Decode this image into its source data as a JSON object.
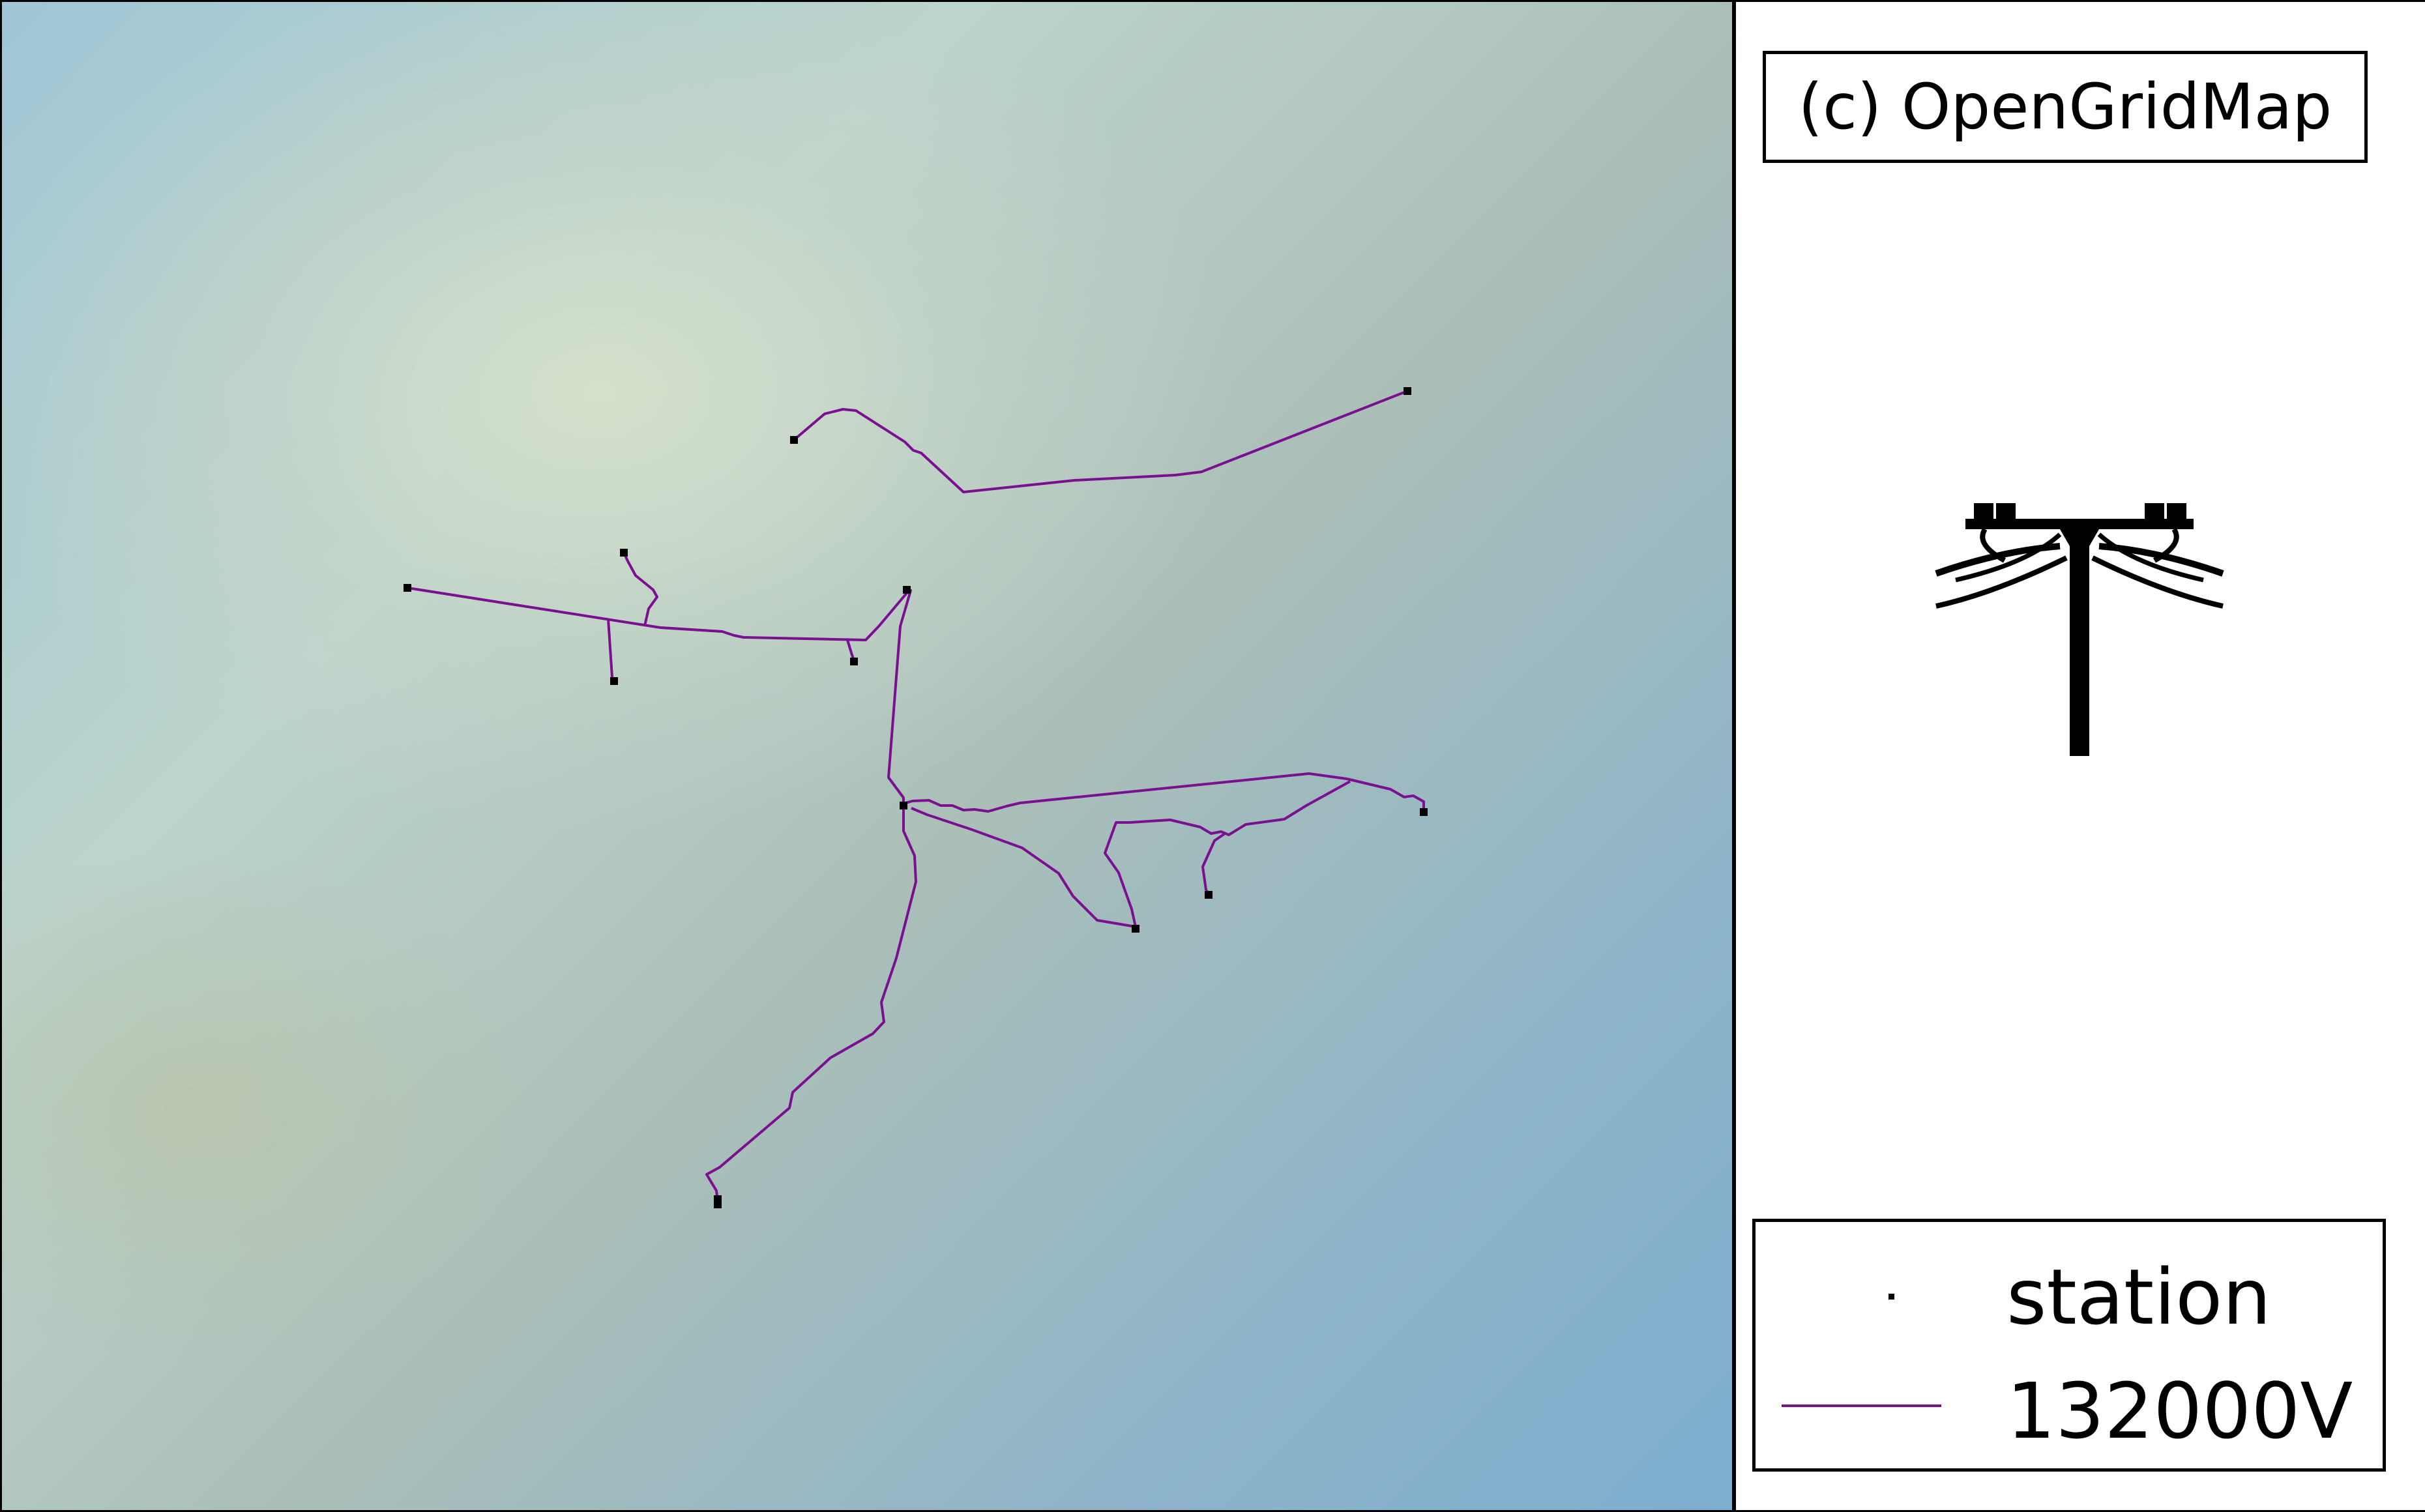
{
  "map": {
    "line_color": "#7a0f8f",
    "station_color": "#000000",
    "lines": [
      [
        [
          1215,
          672
        ],
        [
          1262,
          632
        ],
        [
          1290,
          625
        ],
        [
          1310,
          627
        ],
        [
          1385,
          675
        ],
        [
          1398,
          688
        ],
        [
          1410,
          692
        ],
        [
          1475,
          752
        ],
        [
          1645,
          734
        ],
        [
          1800,
          726
        ],
        [
          1840,
          721
        ],
        [
          2156,
          597
        ]
      ],
      [
        [
          622,
          899
        ],
        [
          1010,
          960
        ],
        [
          1105,
          966
        ],
        [
          1123,
          972
        ],
        [
          1138,
          975
        ],
        [
          1325,
          979
        ],
        [
          1345,
          958
        ],
        [
          1388,
          907
        ]
      ],
      [
        [
          1297,
          979
        ],
        [
          1304,
          1002
        ],
        [
          1307,
          1010
        ]
      ],
      [
        [
          930,
          947
        ],
        [
          936,
          1036
        ],
        [
          939,
          1042
        ]
      ],
      [
        [
          986,
          957
        ],
        [
          992,
          931
        ],
        [
          1005,
          913
        ],
        [
          999,
          902
        ],
        [
          972,
          880
        ],
        [
          960,
          858
        ],
        [
          954,
          845
        ]
      ],
      [
        [
          1388,
          907
        ],
        [
          1394,
          903
        ],
        [
          1378,
          958
        ],
        [
          1360,
          1190
        ],
        [
          1383,
          1221
        ],
        [
          1383,
          1272
        ],
        [
          1400,
          1310
        ],
        [
          1402,
          1350
        ],
        [
          1372,
          1467
        ],
        [
          1349,
          1535
        ],
        [
          1353,
          1565
        ],
        [
          1336,
          1583
        ],
        [
          1271,
          1620
        ],
        [
          1213,
          1673
        ],
        [
          1208,
          1697
        ],
        [
          1101,
          1788
        ],
        [
          1081,
          1799
        ],
        [
          1096,
          1824
        ],
        [
          1098,
          1840
        ]
      ],
      [
        [
          1383,
          1230
        ],
        [
          1397,
          1226
        ],
        [
          1422,
          1225
        ],
        [
          1440,
          1233
        ],
        [
          1458,
          1233
        ],
        [
          1475,
          1240
        ],
        [
          1492,
          1239
        ],
        [
          1513,
          1242
        ],
        [
          1541,
          1234
        ],
        [
          1562,
          1229
        ],
        [
          2005,
          1184
        ],
        [
          2063,
          1192
        ],
        [
          2130,
          1208
        ],
        [
          2151,
          1220
        ],
        [
          2165,
          1218
        ],
        [
          2181,
          1227
        ],
        [
          2181,
          1243
        ]
      ],
      [
        [
          1395,
          1237
        ],
        [
          1419,
          1247
        ],
        [
          1488,
          1270
        ],
        [
          1565,
          1298
        ],
        [
          1621,
          1337
        ],
        [
          1643,
          1372
        ],
        [
          1680,
          1409
        ],
        [
          1739,
          1419
        ],
        [
          1733,
          1392
        ],
        [
          1713,
          1336
        ],
        [
          1692,
          1306
        ],
        [
          1709,
          1259
        ],
        [
          1730,
          1259
        ],
        [
          1792,
          1255
        ],
        [
          1838,
          1266
        ],
        [
          1855,
          1276
        ],
        [
          1870,
          1273
        ],
        [
          1882,
          1278
        ],
        [
          1908,
          1262
        ],
        [
          1967,
          1254
        ],
        [
          2001,
          1233
        ],
        [
          2068,
          1196
        ]
      ],
      [
        [
          1876,
          1276
        ],
        [
          1860,
          1287
        ],
        [
          1842,
          1327
        ],
        [
          1847,
          1362
        ],
        [
          1851,
          1370
        ]
      ]
    ],
    "stations": [
      [
        1215,
        672
      ],
      [
        2156,
        597
      ],
      [
        622,
        899
      ],
      [
        954,
        845
      ],
      [
        1388,
        902
      ],
      [
        1307,
        1012
      ],
      [
        939,
        1042
      ],
      [
        1383,
        1233
      ],
      [
        2181,
        1243
      ],
      [
        1739,
        1422
      ],
      [
        1851,
        1370
      ],
      [
        1098,
        1837
      ],
      [
        1098,
        1845
      ]
    ]
  },
  "attribution": {
    "text": "(c) OpenGridMap"
  },
  "logo": {
    "icon": "power-pylon-icon"
  },
  "legend": {
    "items": [
      {
        "label": "station",
        "symbol": "point",
        "color": "#000000"
      },
      {
        "label": "132000V",
        "symbol": "line",
        "color": "#7a0f8f"
      }
    ]
  }
}
